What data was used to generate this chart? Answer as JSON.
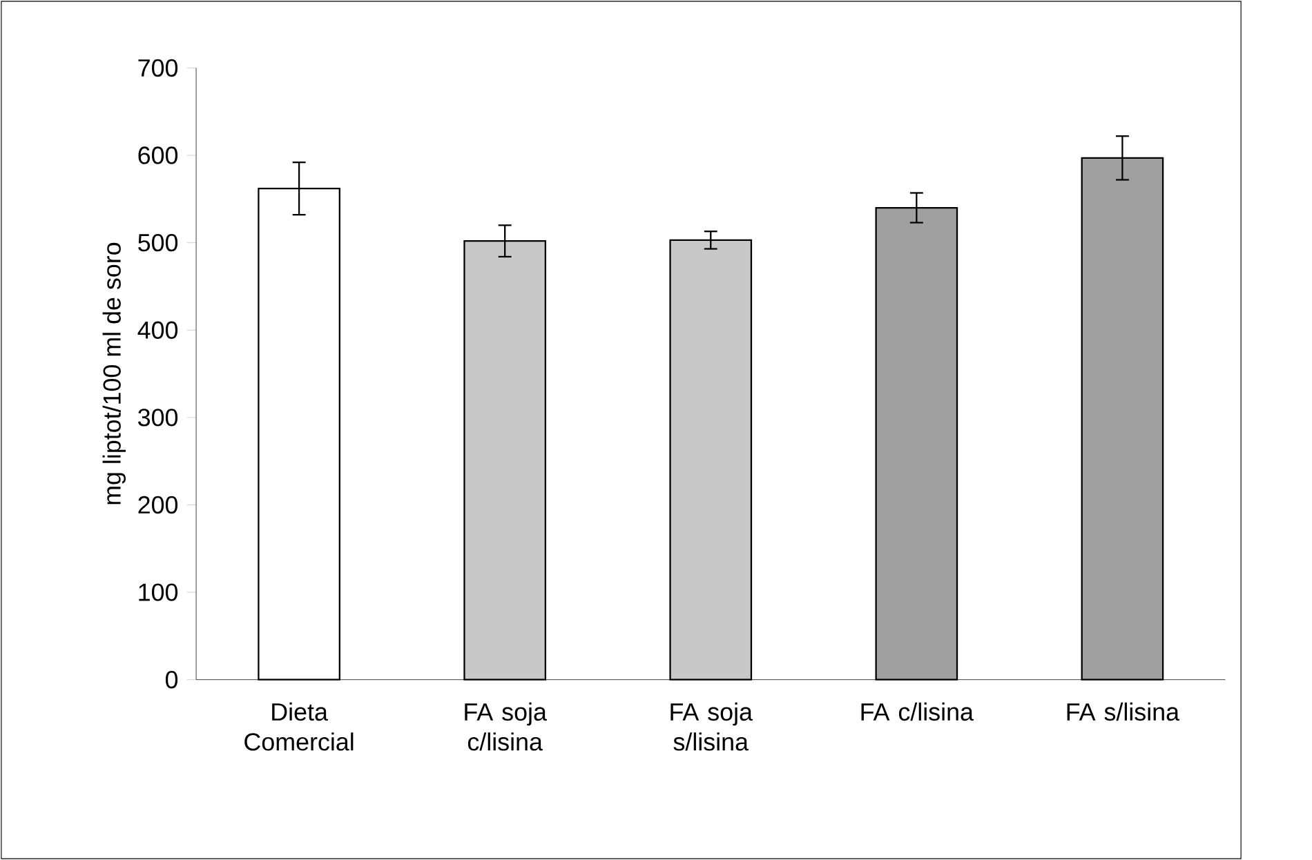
{
  "chart_data": {
    "type": "bar",
    "ylabel": "mg liptot/100 ml de soro",
    "categories": [
      "Dieta Comercial",
      "FA soja c/lisina",
      "FA soja s/lisina",
      "FA c/lisina",
      "FA s/lisina"
    ],
    "values": [
      562,
      502,
      503,
      540,
      597
    ],
    "errors": [
      30,
      18,
      10,
      17,
      25
    ],
    "colors": [
      "#ffffff",
      "#c8c8c8",
      "#c8c8c8",
      "#a0a0a0",
      "#a0a0a0"
    ],
    "ylim": [
      0,
      700
    ],
    "yticks": [
      0,
      100,
      200,
      300,
      400,
      500,
      600,
      700
    ],
    "grid": false
  }
}
